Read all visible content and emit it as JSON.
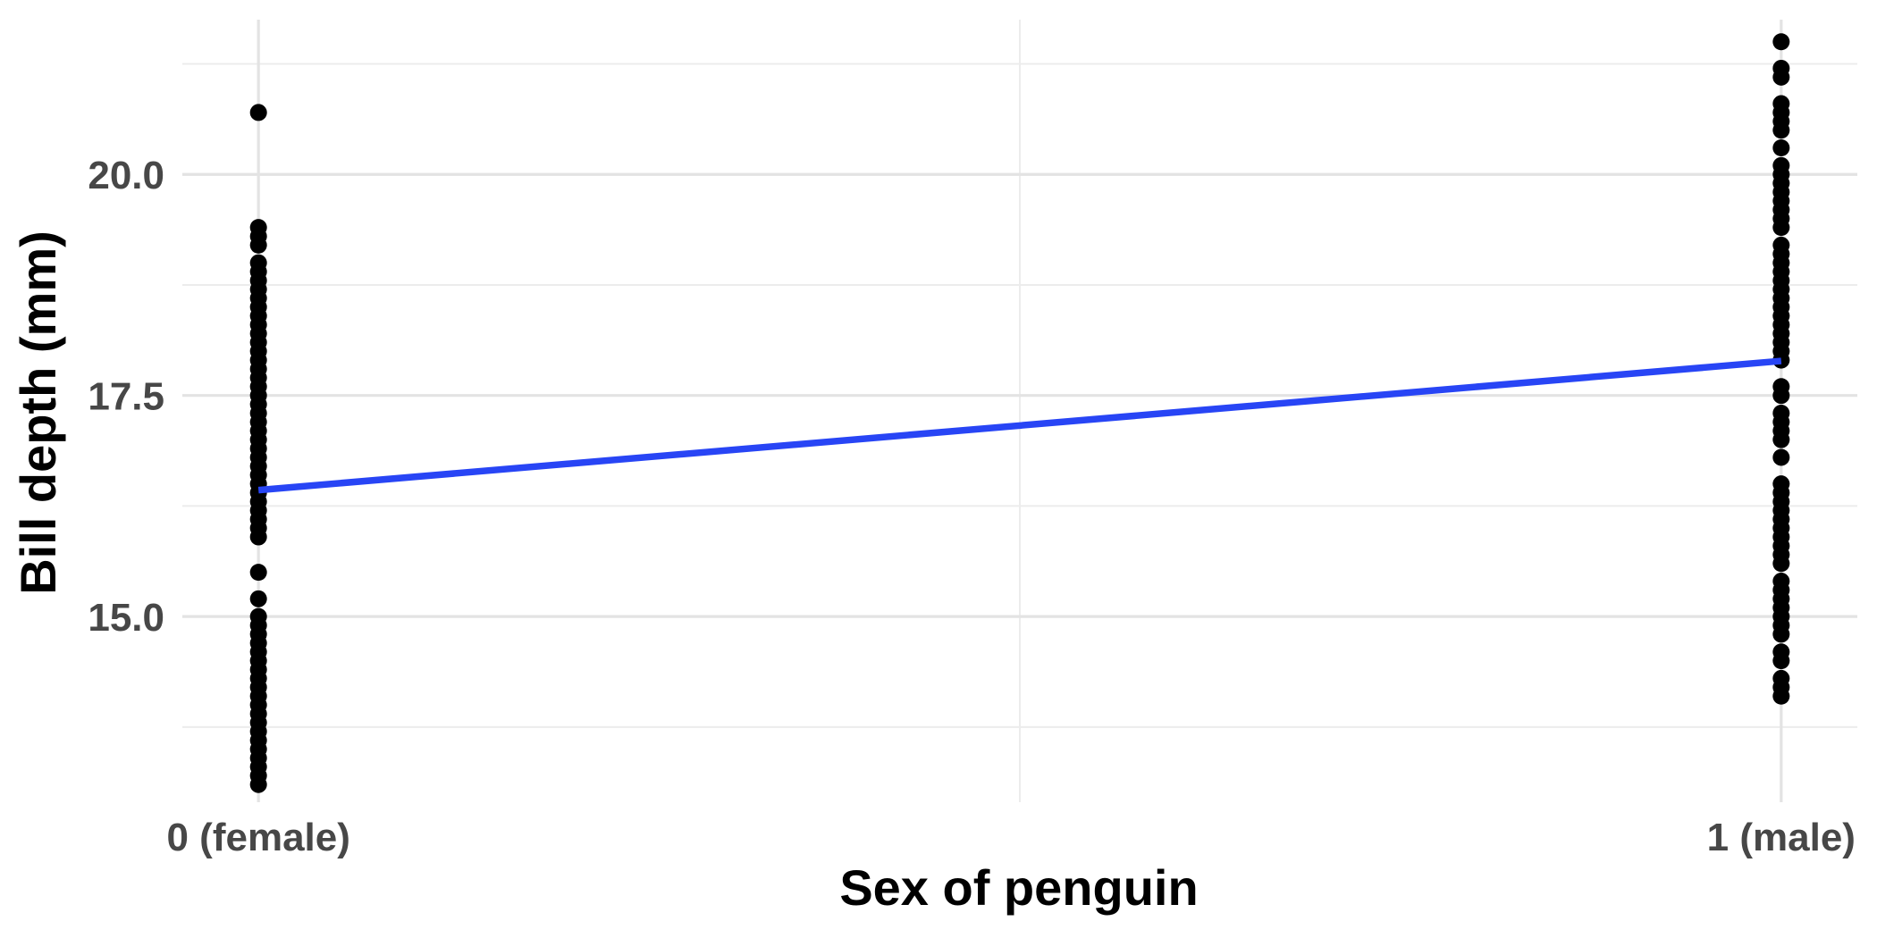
{
  "chart_data": {
    "type": "scatter",
    "title": "",
    "xlabel": "Sex of penguin",
    "ylabel": "Bill depth (mm)",
    "xlim": [
      -0.05,
      1.05
    ],
    "ylim": [
      12.9,
      21.75
    ],
    "x_ticks": [
      {
        "value": 0,
        "label": "0 (female)"
      },
      {
        "value": 1,
        "label": "1 (male)"
      }
    ],
    "y_ticks": [
      {
        "value": 15.0,
        "label": "15.0"
      },
      {
        "value": 17.5,
        "label": "17.5"
      },
      {
        "value": 20.0,
        "label": "20.0"
      }
    ],
    "grid": true,
    "point_color": "#000000",
    "line_color": "#2845f5",
    "series": [
      {
        "x": 0,
        "values": [
          13.1,
          13.2,
          13.3,
          13.4,
          13.5,
          13.6,
          13.7,
          13.8,
          13.9,
          14.0,
          14.1,
          14.2,
          14.3,
          14.4,
          14.5,
          14.6,
          14.7,
          14.8,
          14.9,
          15.0,
          15.2,
          15.5,
          15.9,
          16.0,
          16.1,
          16.2,
          16.3,
          16.4,
          16.5,
          16.6,
          16.7,
          16.8,
          16.9,
          17.0,
          17.1,
          17.2,
          17.3,
          17.4,
          17.5,
          17.6,
          17.7,
          17.8,
          17.9,
          18.0,
          18.1,
          18.2,
          18.3,
          18.4,
          18.5,
          18.6,
          18.7,
          18.8,
          18.9,
          19.0,
          19.2,
          19.3,
          19.4,
          20.7
        ]
      },
      {
        "x": 1,
        "values": [
          14.1,
          14.2,
          14.3,
          14.5,
          14.6,
          14.8,
          14.9,
          15.0,
          15.1,
          15.2,
          15.3,
          15.4,
          15.6,
          15.7,
          15.8,
          15.9,
          16.0,
          16.1,
          16.2,
          16.3,
          16.4,
          16.5,
          16.8,
          17.0,
          17.1,
          17.2,
          17.3,
          17.5,
          17.6,
          17.9,
          18.0,
          18.1,
          18.2,
          18.3,
          18.4,
          18.5,
          18.6,
          18.7,
          18.8,
          18.9,
          19.0,
          19.1,
          19.2,
          19.4,
          19.5,
          19.6,
          19.7,
          19.8,
          19.9,
          20.0,
          20.1,
          20.3,
          20.5,
          20.6,
          20.7,
          20.8,
          21.1,
          21.2,
          21.5
        ]
      }
    ],
    "regression_line": {
      "x": [
        0,
        1
      ],
      "y": [
        16.43,
        17.89
      ]
    }
  }
}
